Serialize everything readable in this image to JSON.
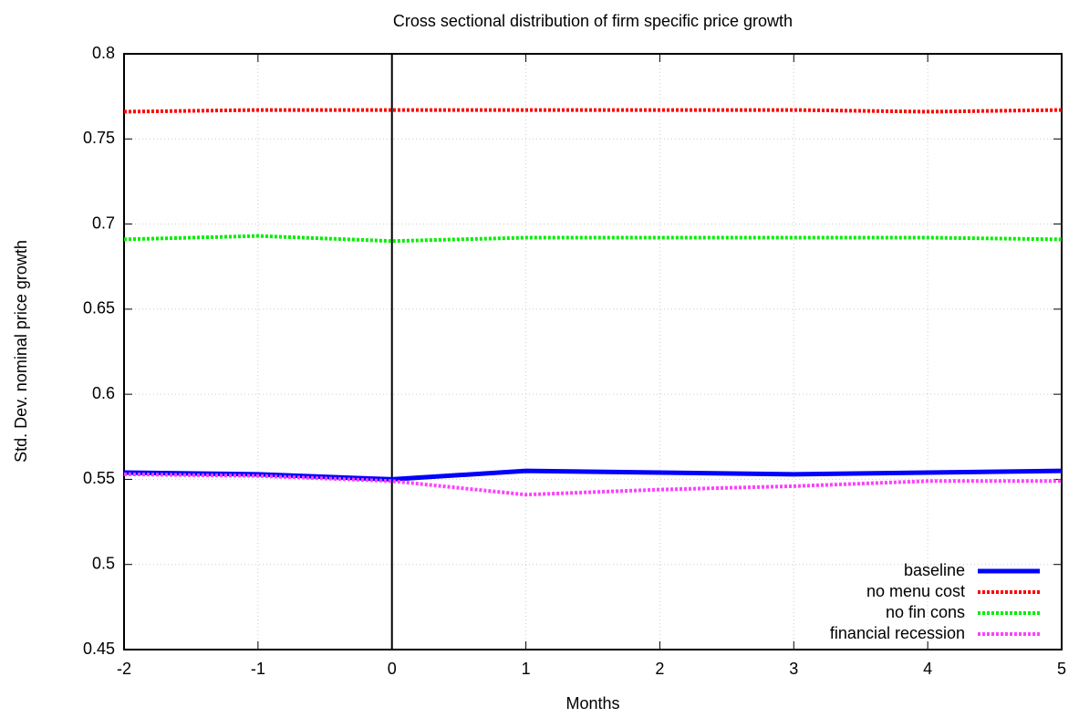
{
  "chart_data": {
    "type": "line",
    "title": "Cross sectional distribution of firm specific price growth",
    "x_label": "Months",
    "y_label": "Std. Dev. nominal price growth",
    "x": [
      -2,
      -1,
      0,
      1,
      2,
      3,
      4,
      5
    ],
    "xlim": [
      -2,
      5
    ],
    "xticks": [
      -2,
      -1,
      0,
      1,
      2,
      3,
      4,
      5
    ],
    "ylim": [
      0.45,
      0.8
    ],
    "yticks": [
      0.45,
      0.5,
      0.55,
      0.6,
      0.65,
      0.7,
      0.75,
      0.8
    ],
    "grid": true,
    "legend": "bottom-right",
    "reference_line_x": 0,
    "series": [
      {
        "name": "baseline",
        "color": "#0000ff",
        "dashed": false,
        "values": [
          0.554,
          0.553,
          0.55,
          0.555,
          0.554,
          0.553,
          0.554,
          0.555
        ]
      },
      {
        "name": "no menu cost",
        "color": "#ff0000",
        "dashed": true,
        "values": [
          0.766,
          0.767,
          0.767,
          0.767,
          0.767,
          0.767,
          0.766,
          0.767
        ]
      },
      {
        "name": "no fin cons",
        "color": "#00ee00",
        "dashed": true,
        "values": [
          0.691,
          0.693,
          0.69,
          0.692,
          0.692,
          0.692,
          0.692,
          0.691
        ]
      },
      {
        "name": "financial recession",
        "color": "#ff40ff",
        "dashed": true,
        "values": [
          0.553,
          0.552,
          0.549,
          0.541,
          0.544,
          0.546,
          0.549,
          0.549
        ]
      }
    ]
  }
}
